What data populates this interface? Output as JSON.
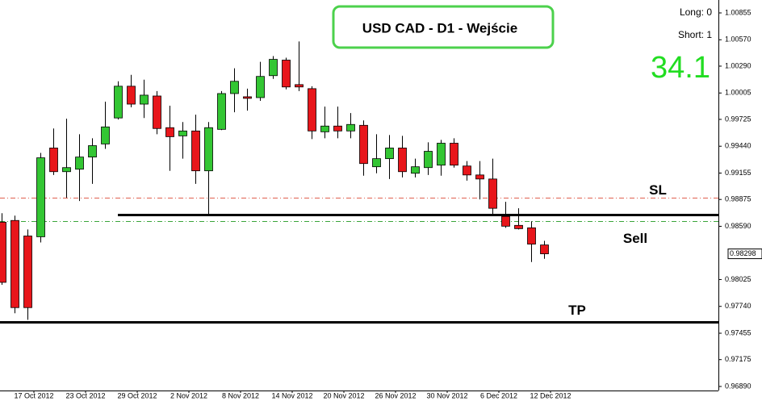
{
  "chart_data": {
    "type": "candlestick",
    "title": "USD CAD - D1 - Wejście",
    "long_label": "Long: 0",
    "short_label": "Short: 1",
    "big_value": "34.1",
    "up_color": "#33c633",
    "down_color": "#e8161b",
    "categories": [
      null,
      null,
      "17 Oct 2012",
      null,
      null,
      null,
      "23 Oct 2012",
      null,
      null,
      null,
      "29 Oct 2012",
      null,
      null,
      null,
      "2 Nov 2012",
      null,
      null,
      null,
      "8 Nov 2012",
      null,
      null,
      null,
      "14 Nov 2012",
      null,
      null,
      null,
      "20 Nov 2012",
      null,
      null,
      null,
      "26 Nov 2012",
      null,
      null,
      null,
      "30 Nov 2012",
      null,
      null,
      null,
      "6 Dec 2012",
      null,
      null,
      null,
      "12 Dec 2012"
    ],
    "open": [
      0.98634,
      0.98652,
      0.98487,
      0.98479,
      0.99421,
      0.9917,
      0.99196,
      0.99325,
      0.99464,
      0.9974,
      1.00077,
      0.99887,
      0.99973,
      0.99637,
      0.9955,
      0.99602,
      0.99179,
      0.99619,
      0.99999,
      0.99965,
      0.99956,
      1.00189,
      1.00354,
      1.00094,
      1.00051,
      0.99593,
      0.99654,
      0.99602,
      0.99662,
      0.99222,
      0.99308,
      0.99421,
      0.99153,
      0.99213,
      0.99239,
      0.99472,
      0.9923,
      0.99135,
      0.99092,
      0.98695,
      0.986,
      0.98574,
      0.98392
    ],
    "high": [
      0.98729,
      0.98703,
      0.98557,
      0.99369,
      0.99628,
      0.99732,
      0.99567,
      0.99524,
      0.99913,
      1.00129,
      1.00198,
      1.00146,
      1.00025,
      0.9987,
      0.99697,
      0.99775,
      0.99697,
      1.00025,
      1.00267,
      1.00051,
      1.00336,
      1.00397,
      1.0038,
      1.00552,
      1.00077,
      0.99861,
      0.99861,
      0.99792,
      0.99714,
      0.99567,
      0.99559,
      0.9955,
      0.99308,
      0.99481,
      0.99507,
      0.99524,
      0.99282,
      0.99282,
      0.99308,
      0.9885,
      0.98781,
      0.98643,
      0.98436
    ],
    "low": [
      0.97969,
      0.97667,
      0.97597,
      0.98418,
      0.99135,
      0.98893,
      0.98859,
      0.9904,
      0.99412,
      0.99723,
      0.99853,
      0.9974,
      0.99567,
      0.99179,
      0.99308,
      0.9904,
      0.98721,
      0.99611,
      0.99801,
      0.99818,
      0.99922,
      1.00155,
      1.00043,
      1.00025,
      0.99516,
      0.99524,
      0.99524,
      0.99524,
      0.99127,
      0.99153,
      0.99092,
      0.99109,
      0.99109,
      0.99135,
      0.99127,
      0.99213,
      0.99075,
      0.98876,
      0.98703,
      0.98574,
      0.98557,
      0.98211,
      0.98245
    ],
    "close": [
      0.97995,
      0.97727,
      0.97727,
      0.99317,
      0.9917,
      0.99213,
      0.99325,
      0.99446,
      0.99645,
      1.00077,
      0.99887,
      0.99982,
      0.99628,
      0.99541,
      0.99602,
      0.99179,
      0.99637,
      0.99999,
      1.00129,
      0.99948,
      1.00181,
      1.00362,
      1.00069,
      1.00069,
      0.99602,
      0.99654,
      0.99602,
      0.99671,
      0.99256,
      0.99308,
      0.99421,
      0.9917,
      0.99222,
      0.99386,
      0.99472,
      0.99239,
      0.99135,
      0.99092,
      0.98781,
      0.98591,
      0.98565,
      0.98401,
      0.98298
    ],
    "current_price": 0.98298,
    "levels": [
      {
        "label": "SL",
        "value": 0.98893,
        "color": "#e06050",
        "style": "dashdot"
      },
      {
        "value": 0.98712,
        "color": "#000000",
        "style": "solid"
      },
      {
        "label": "Sell",
        "value": 0.98643,
        "color": "#3aa53a",
        "style": "dashdot"
      },
      {
        "label": "TP",
        "value": 0.97572,
        "color": "#000000",
        "style": "solid"
      }
    ],
    "ylim": [
      0.96847,
      1.00992
    ],
    "yticks": [
      1.00855,
      {
        "value": 1.0057,
        "label": "1.00570"
      },
      {
        "value": 1.0029,
        "label": "1.00290"
      },
      1.00005,
      0.99725,
      {
        "value": 0.9944,
        "label": "0.99440"
      },
      0.99155,
      0.98875,
      {
        "value": 0.9859,
        "label": "0.98590"
      },
      0.98025,
      {
        "value": 0.9774,
        "label": "0.97740"
      },
      0.97455,
      0.97175,
      {
        "value": 0.9689,
        "label": "0.96890"
      }
    ]
  }
}
